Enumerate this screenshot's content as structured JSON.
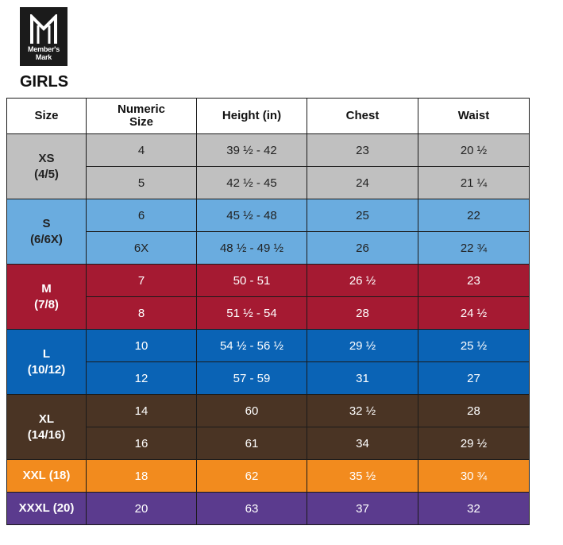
{
  "brand": {
    "logo_line1": "Member's",
    "logo_line2": "Mark"
  },
  "title": "GIRLS",
  "columns": [
    "Size",
    "Numeric Size",
    "Height (in)",
    "Chest",
    "Waist"
  ],
  "groups": [
    {
      "size": "XS",
      "alt": "(4/5)",
      "color": "#c0c0c0",
      "text_color": "#222222",
      "rows": [
        {
          "numeric": "4",
          "height": "39 ½ - 42",
          "chest": "23",
          "waist": "20 ½"
        },
        {
          "numeric": "5",
          "height": "42 ½ - 45",
          "chest": "24",
          "waist": "21 ¼"
        }
      ]
    },
    {
      "size": "S",
      "alt": "(6/6X)",
      "color": "#6aacdf",
      "text_color": "#222222",
      "rows": [
        {
          "numeric": "6",
          "height": "45 ½ - 48",
          "chest": "25",
          "waist": "22"
        },
        {
          "numeric": "6X",
          "height": "48 ½ - 49 ½",
          "chest": "26",
          "waist": "22 ¾"
        }
      ]
    },
    {
      "size": "M",
      "alt": "(7/8)",
      "color": "#a51a32",
      "text_color": "#ffffff",
      "rows": [
        {
          "numeric": "7",
          "height": "50 - 51",
          "chest": "26 ½",
          "waist": "23"
        },
        {
          "numeric": "8",
          "height": "51 ½ - 54",
          "chest": "28",
          "waist": "24 ½"
        }
      ]
    },
    {
      "size": "L",
      "alt": "(10/12)",
      "color": "#0a63b5",
      "text_color": "#ffffff",
      "rows": [
        {
          "numeric": "10",
          "height": "54 ½ - 56 ½",
          "chest": "29 ½",
          "waist": "25 ½"
        },
        {
          "numeric": "12",
          "height": "57 - 59",
          "chest": "31",
          "waist": "27"
        }
      ]
    },
    {
      "size": "XL",
      "alt": "(14/16)",
      "color": "#4a3424",
      "text_color": "#ffffff",
      "rows": [
        {
          "numeric": "14",
          "height": "60",
          "chest": "32 ½",
          "waist": "28"
        },
        {
          "numeric": "16",
          "height": "61",
          "chest": "34",
          "waist": "29 ½"
        }
      ]
    },
    {
      "size": "XXL (18)",
      "alt": "",
      "color": "#f28b1e",
      "text_color": "#ffffff",
      "rows": [
        {
          "numeric": "18",
          "height": "62",
          "chest": "35 ½",
          "waist": "30 ¾"
        }
      ]
    },
    {
      "size": "XXXL (20)",
      "alt": "",
      "color": "#5b3b8e",
      "text_color": "#ffffff",
      "rows": [
        {
          "numeric": "20",
          "height": "63",
          "chest": "37",
          "waist": "32"
        }
      ]
    }
  ]
}
